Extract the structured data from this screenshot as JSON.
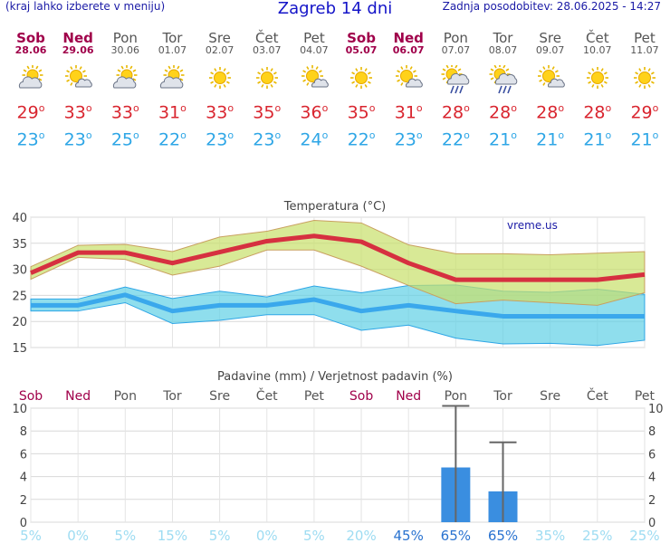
{
  "header": {
    "menu_hint": "(kraj lahko izberete v meniju)",
    "title": "Zagreb 14 dni",
    "updated": "Zadnja posodobitev: 28.06.2025 - 14:27"
  },
  "colors": {
    "weekend": "#a0004a",
    "weekday": "#555555",
    "max": "#d9252f",
    "min": "#2ea6e6",
    "bar": "#3a8ee0"
  },
  "days": [
    {
      "name": "Sob",
      "date": "28.06",
      "weekend": true,
      "icon": "sun-cloud-icon",
      "max": "29",
      "min": "23"
    },
    {
      "name": "Ned",
      "date": "29.06",
      "weekend": true,
      "icon": "sun-small-cloud-icon",
      "max": "33",
      "min": "23"
    },
    {
      "name": "Pon",
      "date": "30.06",
      "weekend": false,
      "icon": "sun-cloud-icon",
      "max": "33",
      "min": "25"
    },
    {
      "name": "Tor",
      "date": "01.07",
      "weekend": false,
      "icon": "sun-cloud-icon",
      "max": "31",
      "min": "22"
    },
    {
      "name": "Sre",
      "date": "02.07",
      "weekend": false,
      "icon": "sun-icon",
      "max": "33",
      "min": "23"
    },
    {
      "name": "Čet",
      "date": "03.07",
      "weekend": false,
      "icon": "sun-icon",
      "max": "35",
      "min": "23"
    },
    {
      "name": "Pet",
      "date": "04.07",
      "weekend": false,
      "icon": "sun-small-cloud-icon",
      "max": "36",
      "min": "24"
    },
    {
      "name": "Sob",
      "date": "05.07",
      "weekend": true,
      "icon": "sun-icon",
      "max": "35",
      "min": "22"
    },
    {
      "name": "Ned",
      "date": "06.07",
      "weekend": true,
      "icon": "sun-small-cloud-icon",
      "max": "31",
      "min": "23"
    },
    {
      "name": "Pon",
      "date": "07.07",
      "weekend": false,
      "icon": "sun-rain-icon",
      "max": "28",
      "min": "22"
    },
    {
      "name": "Tor",
      "date": "08.07",
      "weekend": false,
      "icon": "sun-rain-icon",
      "max": "28",
      "min": "21"
    },
    {
      "name": "Sre",
      "date": "09.07",
      "weekend": false,
      "icon": "sun-small-cloud-icon",
      "max": "28",
      "min": "21"
    },
    {
      "name": "Čet",
      "date": "10.07",
      "weekend": false,
      "icon": "sun-icon",
      "max": "28",
      "min": "21"
    },
    {
      "name": "Pet",
      "date": "11.07",
      "weekend": false,
      "icon": "sun-icon",
      "max": "29",
      "min": "21"
    }
  ],
  "chart_data": [
    {
      "type": "line",
      "title": "Temperatura (°C)",
      "watermark": "vreme.us",
      "ylim": [
        15,
        40
      ],
      "yticks": [
        "15",
        "20",
        "25",
        "30",
        "35",
        "40"
      ],
      "grid": true,
      "x": [
        "28.06",
        "29.06",
        "30.06",
        "01.07",
        "02.07",
        "03.07",
        "04.07",
        "05.07",
        "06.07",
        "07.07",
        "08.07",
        "09.07",
        "10.07",
        "11.07"
      ],
      "series": [
        {
          "role": "max",
          "values": [
            29.3,
            33.2,
            33.2,
            31.2,
            33.3,
            35.4,
            36.4,
            35.3,
            31.2,
            28.0,
            28.0,
            28.0,
            28.0,
            29.0
          ],
          "range_low": [
            28.1,
            32.3,
            31.9,
            28.9,
            30.6,
            33.7,
            33.7,
            30.6,
            26.9,
            23.4,
            24.1,
            23.6,
            23.1,
            25.5
          ],
          "range_high": [
            30.5,
            34.6,
            34.8,
            33.4,
            36.2,
            37.3,
            39.4,
            38.9,
            34.7,
            33.0,
            33.0,
            32.8,
            33.1,
            33.4
          ]
        },
        {
          "role": "min",
          "values": [
            23.1,
            23.1,
            25.1,
            22.0,
            23.1,
            23.1,
            24.2,
            22.0,
            23.1,
            22.0,
            21.0,
            21.0,
            21.0,
            21.0
          ],
          "range_low": [
            22.0,
            22.0,
            23.6,
            19.6,
            20.2,
            21.3,
            21.3,
            18.3,
            19.3,
            16.8,
            15.7,
            15.8,
            15.4,
            16.4
          ],
          "range_high": [
            24.3,
            24.3,
            26.6,
            24.4,
            25.8,
            24.7,
            26.8,
            25.5,
            26.9,
            27.0,
            25.8,
            25.6,
            26.2,
            25.2
          ]
        }
      ]
    },
    {
      "type": "bar",
      "title": "Padavine (mm) / Verjetnost padavin (%)",
      "ylim": [
        0,
        10
      ],
      "yticks": [
        "0",
        "2",
        "4",
        "6",
        "8",
        "10"
      ],
      "day_labels": [
        "Sob",
        "Ned",
        "Pon",
        "Tor",
        "Sre",
        "Čet",
        "Pet",
        "Sob",
        "Ned",
        "Pon",
        "Tor",
        "Sre",
        "Čet",
        "Pet"
      ],
      "day_weekend": [
        true,
        true,
        false,
        false,
        false,
        false,
        false,
        true,
        true,
        false,
        false,
        false,
        false,
        false
      ],
      "values": [
        0,
        0,
        0,
        0,
        0,
        0,
        0,
        0,
        0,
        4.8,
        2.7,
        0,
        0,
        0
      ],
      "error_high": [
        0,
        0,
        0,
        0,
        0,
        0,
        0,
        0,
        0,
        10.2,
        7.0,
        0,
        0,
        0
      ],
      "probability": [
        "5%",
        "0%",
        "5%",
        "15%",
        "5%",
        "0%",
        "5%",
        "20%",
        "45%",
        "65%",
        "65%",
        "35%",
        "25%",
        "25%"
      ],
      "probability_high": [
        false,
        false,
        false,
        false,
        false,
        false,
        false,
        false,
        true,
        true,
        true,
        false,
        false,
        false
      ]
    }
  ]
}
